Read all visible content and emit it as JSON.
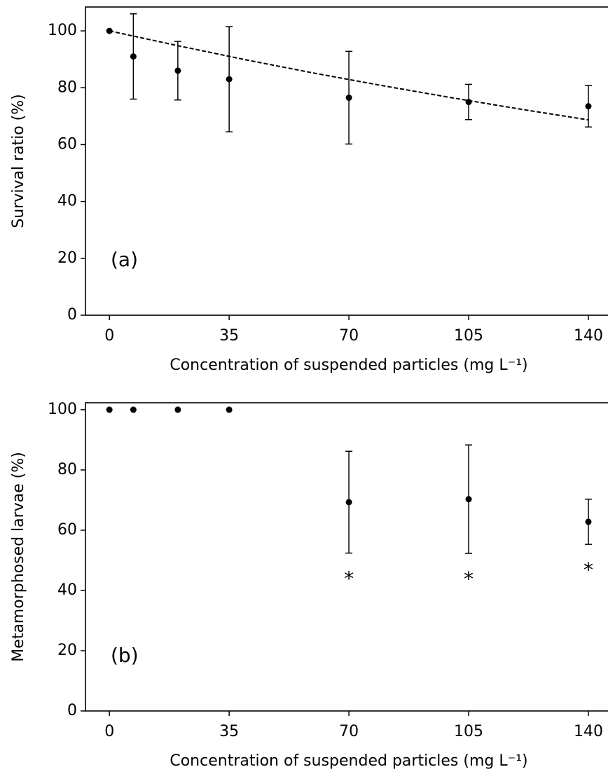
{
  "chart_data": [
    {
      "type": "scatter",
      "panel_label": "(a)",
      "xlabel": "Concentration of suspended particles (mg L⁻¹)",
      "ylabel": "Survival ratio (%)",
      "xlim": [
        -7,
        146
      ],
      "ylim": [
        0,
        108.4
      ],
      "xticks": [
        0,
        35,
        70,
        105,
        140
      ],
      "yticks": [
        0,
        20,
        40,
        60,
        80,
        100
      ],
      "series": [
        {
          "mode": "markers",
          "color": "#000000",
          "x": [
            0,
            7,
            20,
            35,
            70,
            105,
            140
          ],
          "values": [
            100,
            91,
            86,
            83,
            76.5,
            75,
            73.5
          ],
          "errors": [
            null,
            15,
            10.3,
            18.5,
            16.3,
            6.2,
            7.3
          ]
        },
        {
          "mode": "dashed-line",
          "color": "#000000",
          "x": [
            0,
            20,
            40,
            60,
            80,
            100,
            120,
            140
          ],
          "values": [
            100,
            94.8,
            89.8,
            85.1,
            80.7,
            76.5,
            72.5,
            68.7
          ]
        }
      ]
    },
    {
      "type": "scatter",
      "panel_label": "(b)",
      "xlabel": "Concentration of suspended particles (mg L⁻¹)",
      "ylabel": "Metamorphosed larvae (%)",
      "xlim": [
        -7,
        146
      ],
      "ylim": [
        0,
        102.3
      ],
      "xticks": [
        0,
        35,
        70,
        105,
        140
      ],
      "yticks": [
        0,
        20,
        40,
        60,
        80,
        100
      ],
      "series": [
        {
          "mode": "markers",
          "color": "#000000",
          "x": [
            0,
            7,
            20,
            35,
            70,
            105,
            140
          ],
          "values": [
            100,
            100,
            100,
            100,
            69.3,
            70.3,
            62.8
          ],
          "errors": [
            null,
            null,
            null,
            null,
            16.9,
            18,
            7.5
          ],
          "annotations": [
            null,
            null,
            null,
            null,
            "*",
            "*",
            "*"
          ]
        }
      ]
    }
  ]
}
